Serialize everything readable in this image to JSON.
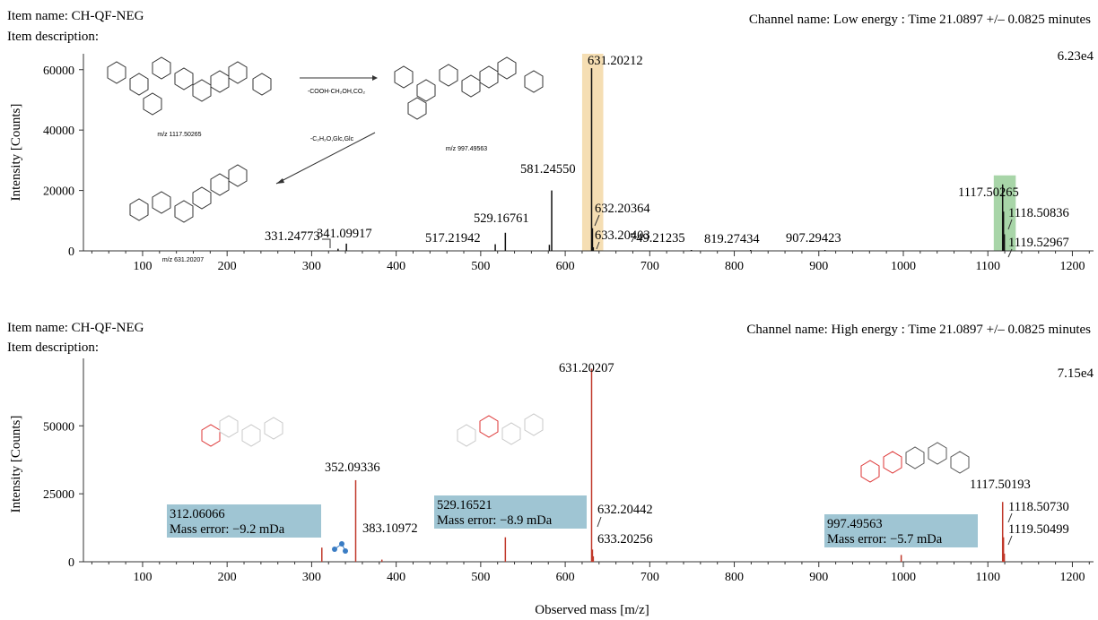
{
  "panels": [
    {
      "item_name": "Item name: CH-QF-NEG",
      "item_description": "Item description:",
      "channel": "Channel name: Low energy : Time 21.0897 +/– 0.0825 minutes",
      "scale": "6.23e4",
      "ylabel": "Intensity [Counts]"
    },
    {
      "item_name": "Item name: CH-QF-NEG",
      "item_description": "Item description:",
      "channel": "Channel name: High energy : Time 21.0897 +/– 0.0825 minutes",
      "scale": "7.15e4",
      "ylabel": "Intensity [Counts]"
    }
  ],
  "xlabel": "Observed mass [m/z]",
  "structures": {
    "mz1": "m/z 1117.50265",
    "mz2": "m/z 997.49563",
    "mz3": "m/z 631.20207",
    "loss1": "-COOH-CH₂OH,CO₂",
    "loss2": "-C₂H₂O,Glc,Glc"
  },
  "colors": {
    "low_peak": "#111111",
    "high_peak": "#c0392b",
    "highlight_orange": "#f5deb3",
    "highlight_green": "#a8d5a8",
    "annotation_box": "#9fc5d3"
  },
  "chart_data": [
    {
      "type": "bar",
      "title": "Low energy",
      "xlabel": "",
      "ylabel": "Intensity [Counts]",
      "xlim": [
        30,
        1225
      ],
      "ylim": [
        0,
        62300
      ],
      "xticks": [
        100,
        200,
        300,
        400,
        500,
        600,
        700,
        800,
        900,
        1000,
        1100,
        1200
      ],
      "yticks": [
        0,
        20000,
        40000,
        60000
      ],
      "peaks": [
        {
          "mz": 331.24773,
          "intensity": 700
        },
        {
          "mz": 341.09917,
          "intensity": 2400
        },
        {
          "mz": 517.21942,
          "intensity": 2200
        },
        {
          "mz": 529.16761,
          "intensity": 6000
        },
        {
          "mz": 581.2455,
          "intensity": 2000
        },
        {
          "mz": 584.0,
          "intensity": 20000
        },
        {
          "mz": 631.20212,
          "intensity": 60500
        },
        {
          "mz": 632.20364,
          "intensity": 7500
        },
        {
          "mz": 633.20403,
          "intensity": 1200
        },
        {
          "mz": 749.21235,
          "intensity": 300
        },
        {
          "mz": 819.27434,
          "intensity": 300
        },
        {
          "mz": 907.29423,
          "intensity": 300
        },
        {
          "mz": 1117.50265,
          "intensity": 22000
        },
        {
          "mz": 1118.50836,
          "intensity": 13000
        },
        {
          "mz": 1119.52967,
          "intensity": 5500
        }
      ],
      "labels": [
        "331.24773",
        "341.09917",
        "517.21942",
        "529.16761",
        "581.24550",
        "631.20212",
        "632.20364",
        "633.20403",
        "749.21235",
        "819.27434",
        "907.29423",
        "1117.50265",
        "1118.50836",
        "1119.52967"
      ]
    },
    {
      "type": "bar",
      "title": "High energy",
      "xlabel": "Observed mass [m/z]",
      "ylabel": "Intensity [Counts]",
      "xlim": [
        30,
        1225
      ],
      "ylim": [
        0,
        71500
      ],
      "xticks": [
        100,
        200,
        300,
        400,
        500,
        600,
        700,
        800,
        900,
        1000,
        1100,
        1200
      ],
      "yticks": [
        0,
        25000,
        50000
      ],
      "peaks": [
        {
          "mz": 312.06066,
          "intensity": 5200
        },
        {
          "mz": 352.09336,
          "intensity": 30000
        },
        {
          "mz": 383.10972,
          "intensity": 800
        },
        {
          "mz": 529.16521,
          "intensity": 9000
        },
        {
          "mz": 631.20207,
          "intensity": 71000
        },
        {
          "mz": 632.20442,
          "intensity": 4500
        },
        {
          "mz": 633.20256,
          "intensity": 2000
        },
        {
          "mz": 997.49563,
          "intensity": 2500
        },
        {
          "mz": 1117.50193,
          "intensity": 22000
        },
        {
          "mz": 1118.5073,
          "intensity": 9000
        },
        {
          "mz": 1119.50499,
          "intensity": 3000
        }
      ],
      "labels": [
        "352.09336",
        "383.10972",
        "631.20207",
        "632.20442",
        "633.20256",
        "1117.50193",
        "1118.50730",
        "1119.50499"
      ],
      "annotations": [
        {
          "mz": "312.06066",
          "error": "Mass error: −9.2 mDa"
        },
        {
          "mz": "529.16521",
          "error": "Mass error: −8.9 mDa"
        },
        {
          "mz": "997.49563",
          "error": "Mass error: −5.7 mDa"
        }
      ]
    }
  ]
}
